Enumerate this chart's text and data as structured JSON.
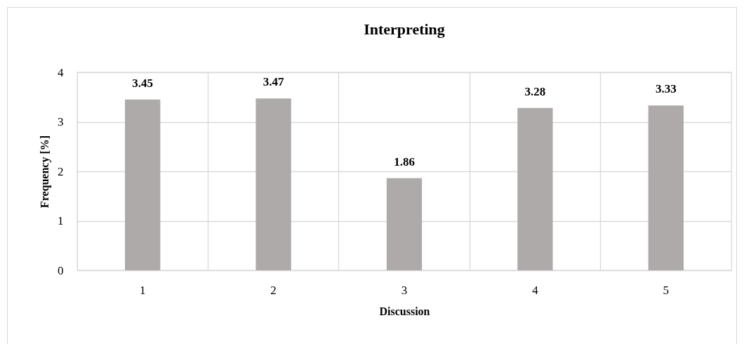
{
  "chart_data": {
    "type": "bar",
    "title": "Interpreting",
    "xlabel": "Discussion",
    "ylabel": "Frequency [%]",
    "categories": [
      "1",
      "2",
      "3",
      "4",
      "5"
    ],
    "values": [
      3.45,
      3.47,
      1.86,
      3.28,
      3.33
    ],
    "color": "#aeaaaa",
    "ylim": [
      0,
      4
    ],
    "yticks": [
      0,
      1,
      2,
      3,
      4
    ],
    "grid": true,
    "data_labels": true
  }
}
